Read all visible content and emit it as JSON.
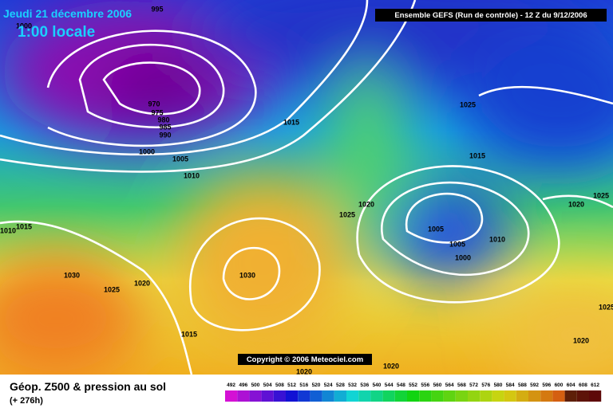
{
  "header": {
    "date": "Jeudi 21 décembre 2006",
    "time": "1:00 locale",
    "model": "Ensemble GEFS (Run de contrôle)  - 12 Z du 9/12/2006"
  },
  "map": {
    "isobar_labels": [
      "995",
      "1000",
      "970",
      "975",
      "980",
      "985",
      "990",
      "1000",
      "1005",
      "1010",
      "1015",
      "1025",
      "1015",
      "1025",
      "1020",
      "1020",
      "1025",
      "1005",
      "1005",
      "1010",
      "1000",
      "1015",
      "1010",
      "1030",
      "1025",
      "1020",
      "1030",
      "1015",
      "1020",
      "1020",
      "1020",
      "1025"
    ],
    "copyright": "Copyright © 2006 Meteociel.com"
  },
  "footer": {
    "title": "Géop. Z500 & pression au sol",
    "lead": "(+ 276h)",
    "scale": [
      "492",
      "496",
      "500",
      "504",
      "508",
      "512",
      "516",
      "520",
      "524",
      "528",
      "532",
      "536",
      "540",
      "544",
      "548",
      "552",
      "556",
      "560",
      "564",
      "568",
      "572",
      "576",
      "580",
      "584",
      "588",
      "592",
      "596",
      "600",
      "604",
      "608",
      "612"
    ]
  }
}
